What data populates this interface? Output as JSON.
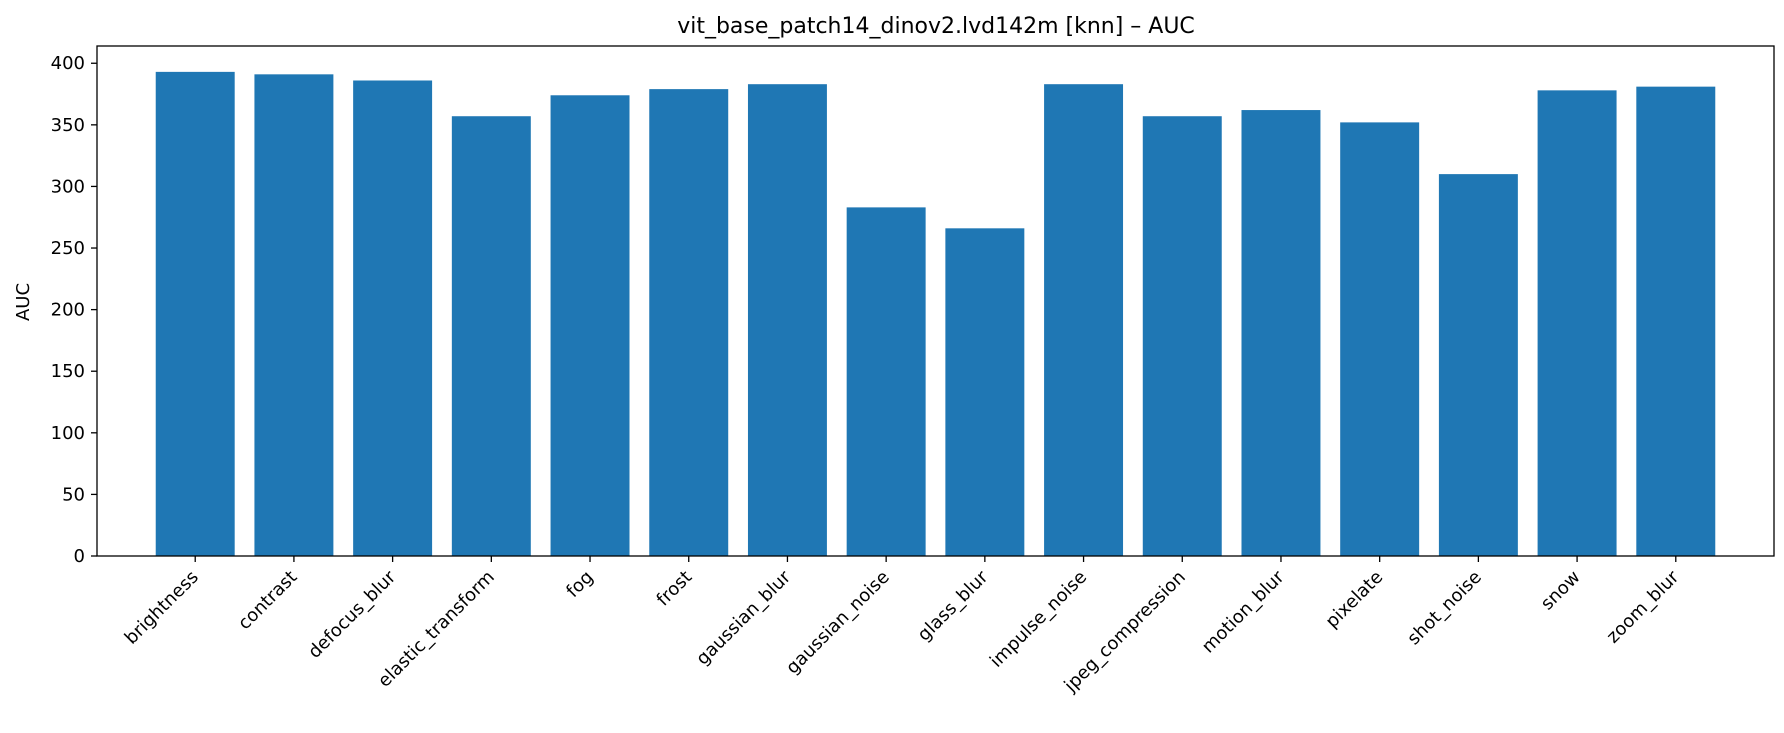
{
  "chart_data": {
    "type": "bar",
    "title": "vit_base_patch14_dinov2.lvd142m [knn] – AUC",
    "xlabel": "",
    "ylabel": "AUC",
    "ylim": [
      0,
      414
    ],
    "yticks": [
      0,
      50,
      100,
      150,
      200,
      250,
      300,
      350,
      400
    ],
    "categories": [
      "brightness",
      "contrast",
      "defocus_blur",
      "elastic_transform",
      "fog",
      "frost",
      "gaussian_blur",
      "gaussian_noise",
      "glass_blur",
      "impulse_noise",
      "jpeg_compression",
      "motion_blur",
      "pixelate",
      "shot_noise",
      "snow",
      "zoom_blur"
    ],
    "values": [
      393,
      391,
      386,
      357,
      374,
      379,
      383,
      283,
      266,
      383,
      357,
      362,
      352,
      310,
      378,
      381
    ],
    "bar_color": "#1f77b4",
    "grid": false,
    "legend": "none"
  }
}
